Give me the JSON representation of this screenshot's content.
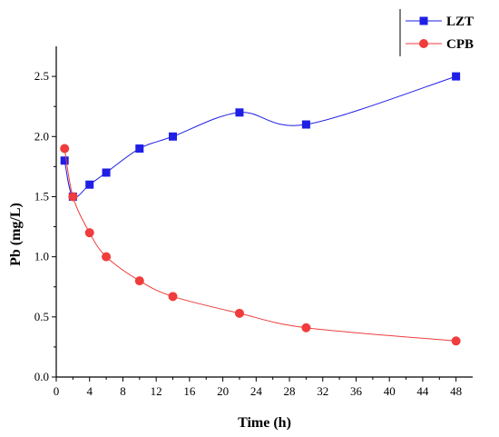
{
  "chart_data": {
    "type": "line",
    "title": "",
    "xlabel": "Time (h)",
    "ylabel": "Pb (mg/L)",
    "xlim": [
      0,
      50
    ],
    "ylim": [
      0,
      2.75
    ],
    "xticks": [
      0,
      4,
      8,
      12,
      16,
      20,
      24,
      28,
      32,
      36,
      40,
      44,
      48
    ],
    "yticks": [
      0.0,
      0.5,
      1.0,
      1.5,
      2.0,
      2.5
    ],
    "ytick_labels": [
      "0.0",
      "0.5",
      "1.0",
      "1.5",
      "2.0",
      "2.5"
    ],
    "grid": false,
    "legend_position": "top-right",
    "series": [
      {
        "name": "LZT",
        "color": "#1f1fe6",
        "marker": "square",
        "x": [
          1,
          2,
          4,
          6,
          10,
          14,
          22,
          30,
          48
        ],
        "y": [
          1.8,
          1.5,
          1.6,
          1.7,
          1.9,
          2.0,
          2.2,
          2.1,
          2.5
        ]
      },
      {
        "name": "CPB",
        "color": "#f03c3c",
        "marker": "circle",
        "x": [
          1,
          2,
          4,
          6,
          10,
          14,
          22,
          30,
          48
        ],
        "y": [
          1.9,
          1.5,
          1.2,
          1.0,
          0.8,
          0.67,
          0.53,
          0.41,
          0.3
        ]
      }
    ]
  }
}
